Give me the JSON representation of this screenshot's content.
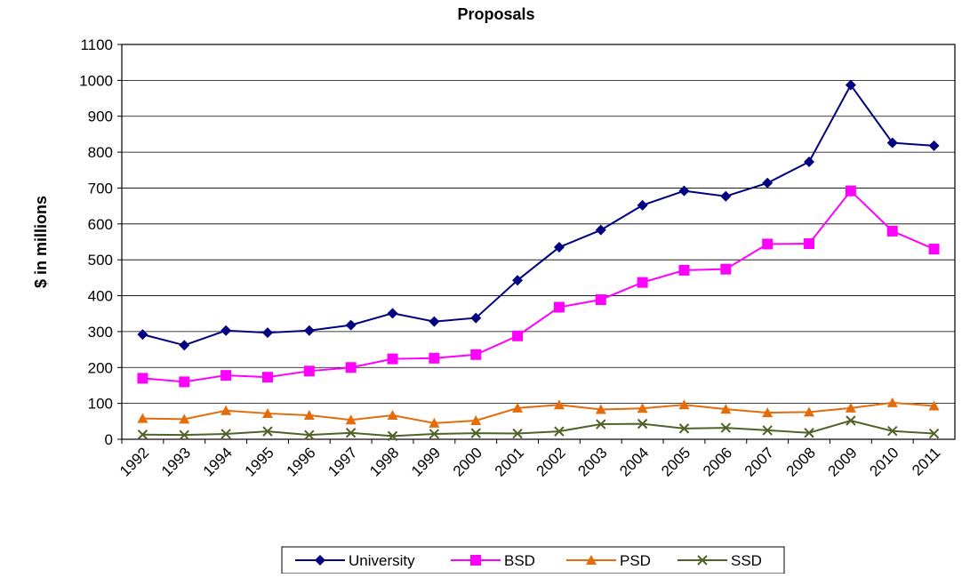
{
  "chart_data": {
    "type": "line",
    "title": "Proposals",
    "y_label": "$ in millions",
    "categories": [
      "1992",
      "1993",
      "1994",
      "1995",
      "1996",
      "1997",
      "1998",
      "1999",
      "2000",
      "2001",
      "2002",
      "2003",
      "2004",
      "2005",
      "2006",
      "2007",
      "2008",
      "2009",
      "2010",
      "2011"
    ],
    "series": [
      {
        "name": "University",
        "color": "#000080",
        "marker": "diamond",
        "values": [
          292,
          262,
          303,
          297,
          303,
          318,
          351,
          328,
          338,
          443,
          535,
          583,
          652,
          692,
          677,
          714,
          773,
          987,
          826,
          818
        ]
      },
      {
        "name": "BSD",
        "color": "#ff00ff",
        "marker": "square",
        "values": [
          170,
          160,
          178,
          173,
          190,
          200,
          224,
          226,
          236,
          288,
          368,
          389,
          437,
          471,
          474,
          544,
          545,
          692,
          580,
          530
        ]
      },
      {
        "name": "PSD",
        "color": "#e46c0a",
        "marker": "triangle",
        "values": [
          58,
          56,
          80,
          72,
          67,
          54,
          67,
          45,
          52,
          87,
          96,
          83,
          86,
          96,
          84,
          74,
          76,
          87,
          102,
          93
        ]
      },
      {
        "name": "SSD",
        "color": "#4f6228",
        "marker": "x",
        "values": [
          13,
          12,
          15,
          22,
          12,
          18,
          9,
          15,
          17,
          16,
          22,
          42,
          43,
          30,
          32,
          25,
          18,
          52,
          23,
          16
        ]
      }
    ],
    "ylim": [
      0,
      1100
    ],
    "yticks": [
      0,
      100,
      200,
      300,
      400,
      500,
      600,
      700,
      800,
      900,
      1000,
      1100
    ],
    "grid": true,
    "legend": "bottom"
  }
}
